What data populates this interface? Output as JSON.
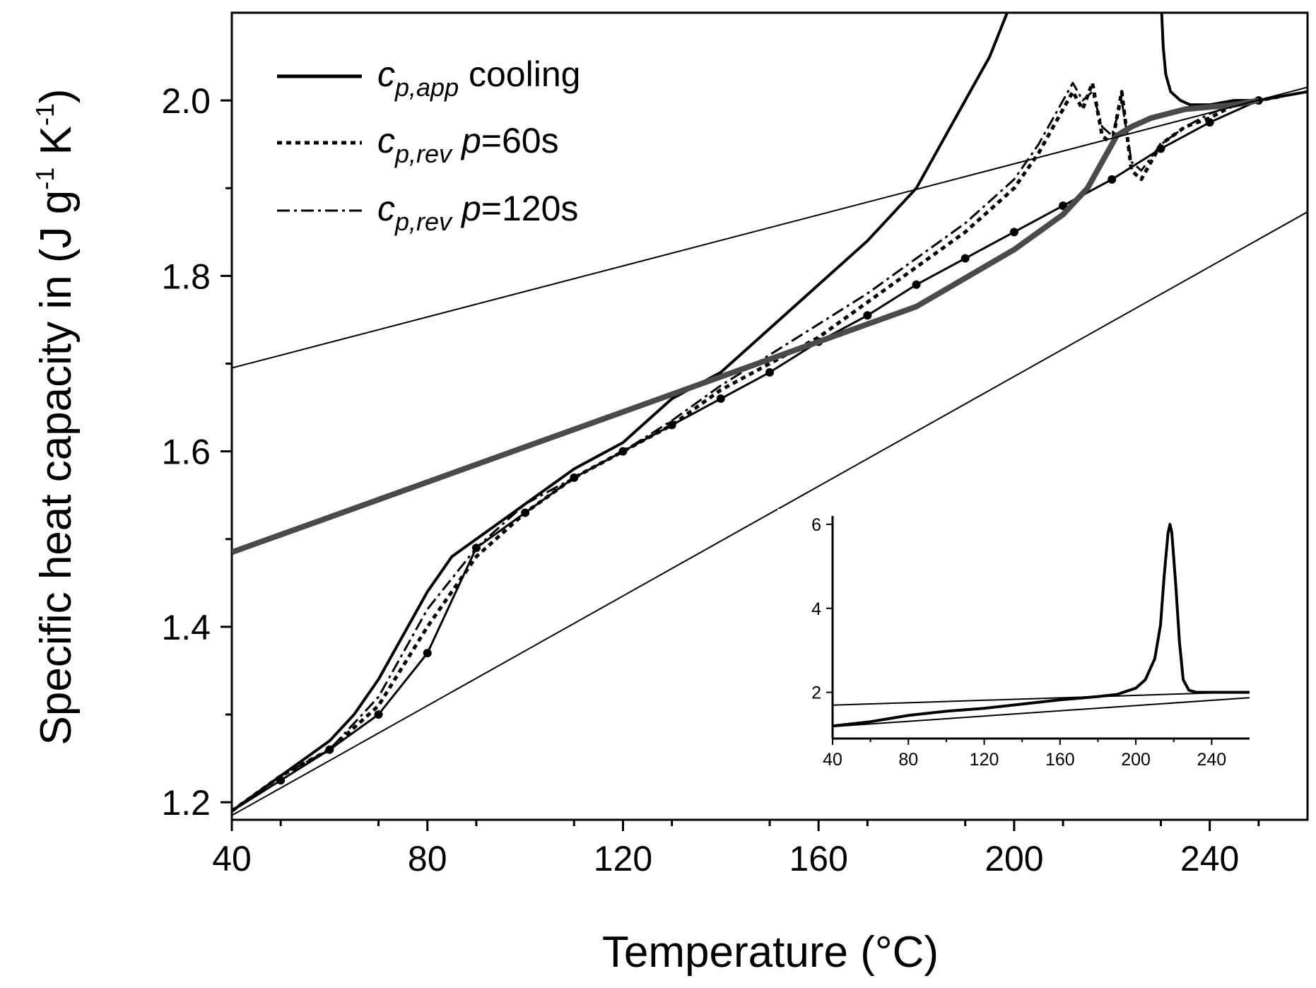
{
  "chart_data": {
    "type": "line",
    "xlabel": "Temperature (°C)",
    "ylabel_main": "Specific heat capacity in (J g",
    "ylabel_exp1": "-1",
    "ylabel_mid": " K",
    "ylabel_exp2": "-1",
    "ylabel_end": ")",
    "xlim": [
      40,
      260
    ],
    "ylim": [
      1.18,
      2.1
    ],
    "xticks": [
      40,
      80,
      120,
      160,
      200,
      240
    ],
    "xtick_labels": [
      "40",
      "80",
      "120",
      "160",
      "200",
      "240"
    ],
    "yticks": [
      1.2,
      1.4,
      1.6,
      1.8,
      2.0
    ],
    "ytick_labels": [
      "1.2",
      "1.4",
      "1.6",
      "1.8",
      "2.0"
    ],
    "legend": [
      {
        "symbol": "c",
        "subscript": "p,app",
        "rest": " cooling",
        "style": "solid"
      },
      {
        "symbol": "c",
        "subscript": "p,rev",
        "ital": " p",
        "rest": "=60s",
        "style": "dotted"
      },
      {
        "symbol": "c",
        "subscript": "p,rev",
        "ital": " p",
        "rest": "=120s",
        "style": "dashdot"
      }
    ],
    "series": [
      {
        "name": "c_p,app cooling",
        "style": "solid",
        "x": [
          40,
          45,
          50,
          55,
          60,
          65,
          70,
          75,
          80,
          85,
          90,
          95,
          100,
          110,
          120,
          130,
          140,
          150,
          160,
          170,
          180,
          185,
          190,
          195,
          200
        ],
        "y": [
          1.19,
          1.21,
          1.23,
          1.25,
          1.27,
          1.3,
          1.34,
          1.39,
          1.44,
          1.48,
          1.5,
          1.52,
          1.54,
          1.58,
          1.61,
          1.66,
          1.69,
          1.74,
          1.79,
          1.84,
          1.9,
          1.95,
          2.0,
          2.05,
          2.12
        ]
      },
      {
        "name": "c_p,app cooling (after peak)",
        "style": "solid",
        "x": [
          230,
          230.5,
          231,
          232,
          234,
          236,
          240,
          245,
          250,
          255,
          260
        ],
        "y": [
          2.12,
          2.06,
          2.03,
          2.01,
          2.0,
          1.995,
          1.995,
          2.0,
          2.0,
          2.005,
          2.01
        ]
      },
      {
        "name": "c_p,rev p=60s",
        "style": "dotted",
        "x": [
          40,
          50,
          60,
          70,
          80,
          90,
          100,
          110,
          120,
          130,
          140,
          150,
          160,
          170,
          180,
          190,
          200,
          205,
          210,
          212,
          214,
          216,
          218,
          220,
          222,
          224,
          226,
          230,
          235,
          240,
          245,
          250,
          255
        ],
        "y": [
          1.19,
          1.23,
          1.26,
          1.31,
          1.4,
          1.48,
          1.53,
          1.57,
          1.6,
          1.63,
          1.67,
          1.7,
          1.73,
          1.77,
          1.81,
          1.85,
          1.9,
          1.94,
          1.99,
          2.01,
          1.99,
          2.02,
          1.96,
          1.95,
          2.01,
          1.92,
          1.91,
          1.95,
          1.97,
          1.98,
          1.995,
          2.0,
          2.005
        ]
      },
      {
        "name": "c_p,rev p=120s",
        "style": "dashdot",
        "x": [
          40,
          50,
          60,
          70,
          80,
          90,
          100,
          110,
          120,
          130,
          140,
          150,
          160,
          170,
          180,
          190,
          200,
          205,
          210,
          212,
          214,
          216,
          218,
          220,
          222,
          224,
          226,
          230,
          235,
          240,
          245,
          250,
          255
        ],
        "y": [
          1.19,
          1.23,
          1.26,
          1.32,
          1.42,
          1.49,
          1.54,
          1.57,
          1.6,
          1.635,
          1.675,
          1.71,
          1.745,
          1.78,
          1.82,
          1.86,
          1.91,
          1.95,
          2.0,
          2.02,
          2.0,
          2.01,
          1.97,
          1.96,
          2.0,
          1.93,
          1.92,
          1.95,
          1.97,
          1.985,
          1.995,
          2.0,
          2.005
        ]
      },
      {
        "name": "baseline fit (dots)",
        "style": "solid-markers",
        "x": [
          40,
          50,
          60,
          70,
          80,
          90,
          100,
          110,
          120,
          130,
          140,
          150,
          160,
          170,
          180,
          190,
          200,
          210,
          220,
          230,
          240,
          250
        ],
        "y": [
          1.19,
          1.225,
          1.26,
          1.3,
          1.37,
          1.49,
          1.53,
          1.57,
          1.6,
          1.63,
          1.66,
          1.69,
          1.725,
          1.755,
          1.79,
          1.82,
          1.85,
          1.88,
          1.91,
          1.945,
          1.975,
          2.0
        ]
      },
      {
        "name": "thick gray curve",
        "style": "thick-gray",
        "x": [
          40,
          60,
          80,
          100,
          120,
          140,
          160,
          180,
          200,
          210,
          215,
          218,
          221,
          224,
          228,
          235,
          245,
          250
        ],
        "y": [
          1.485,
          1.525,
          1.565,
          1.605,
          1.645,
          1.685,
          1.725,
          1.765,
          1.83,
          1.87,
          1.9,
          1.93,
          1.96,
          1.97,
          1.98,
          1.99,
          1.995,
          2.0
        ]
      },
      {
        "name": "upper tangent line",
        "style": "thin",
        "x": [
          40,
          260
        ],
        "y": [
          1.695,
          2.015
        ]
      },
      {
        "name": "lower tangent line",
        "style": "thin",
        "x": [
          40,
          260
        ],
        "y": [
          1.185,
          1.873
        ]
      }
    ],
    "inset": {
      "xlim": [
        40,
        260
      ],
      "ylim": [
        0.9,
        6.2
      ],
      "xticks": [
        40,
        80,
        120,
        160,
        200,
        240
      ],
      "xtick_labels": [
        "40",
        "80",
        "120",
        "160",
        "200",
        "240"
      ],
      "yticks": [
        2,
        4,
        6
      ],
      "ytick_labels": [
        "2",
        "4",
        "6"
      ],
      "series": [
        {
          "name": "inset c_p,app",
          "x": [
            40,
            60,
            80,
            100,
            120,
            140,
            160,
            180,
            190,
            200,
            205,
            210,
            213,
            215,
            217,
            218,
            219,
            221,
            223,
            225,
            228,
            232,
            240,
            250,
            260
          ],
          "y": [
            1.2,
            1.3,
            1.45,
            1.55,
            1.62,
            1.72,
            1.82,
            1.9,
            1.95,
            2.1,
            2.3,
            2.8,
            3.6,
            4.8,
            5.8,
            6.0,
            5.8,
            4.6,
            3.2,
            2.3,
            2.05,
            2.0,
            2.0,
            2.0,
            2.0
          ]
        },
        {
          "name": "inset upper tangent",
          "x": [
            40,
            260
          ],
          "y": [
            1.695,
            2.015
          ]
        },
        {
          "name": "inset lower tangent",
          "x": [
            40,
            260
          ],
          "y": [
            1.185,
            1.873
          ]
        }
      ]
    }
  }
}
